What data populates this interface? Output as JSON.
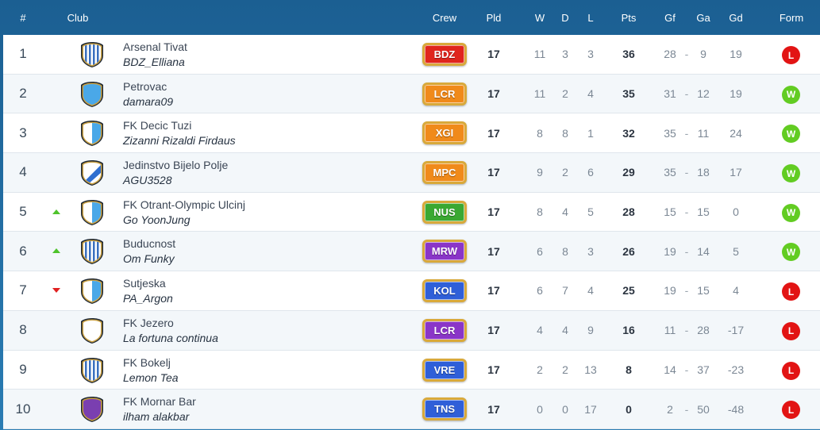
{
  "header": {
    "rank": "#",
    "club": "Club",
    "crew": "Crew",
    "pld": "Pld",
    "w": "W",
    "d": "D",
    "l": "L",
    "pts": "Pts",
    "gf": "Gf",
    "ga": "Ga",
    "gd": "Gd",
    "form": "Form"
  },
  "dash": "-",
  "crest_colors": {
    "stripes": "#3a6fbf",
    "light_blue": "#4aa8e8",
    "white": "#ffffff",
    "purple": "#7a3fb0",
    "gold": "#c9a043"
  },
  "rows": [
    {
      "rank": "1",
      "move": "none",
      "crest": "stripes",
      "club": "Arsenal Tivat",
      "owner": "BDZ_Elliana",
      "crew": "BDZ",
      "crew_color": "#e0251d",
      "pld": "17",
      "w": "11",
      "d": "3",
      "l": "3",
      "pts": "36",
      "gf": "28",
      "ga": "9",
      "gd": "19",
      "form": "L"
    },
    {
      "rank": "2",
      "move": "none",
      "crest": "light_blue",
      "club": "Petrovac",
      "owner": "damara09",
      "crew": "LCR",
      "crew_color": "#f08a1a",
      "pld": "17",
      "w": "11",
      "d": "2",
      "l": "4",
      "pts": "35",
      "gf": "31",
      "ga": "12",
      "gd": "19",
      "form": "W"
    },
    {
      "rank": "3",
      "move": "none",
      "crest": "half_blue",
      "club": "FK Decic Tuzi",
      "owner": "Zizanni Rizaldi Firdaus",
      "crew": "XGI",
      "crew_color": "#f08a1a",
      "pld": "17",
      "w": "8",
      "d": "8",
      "l": "1",
      "pts": "32",
      "gf": "35",
      "ga": "11",
      "gd": "24",
      "form": "W"
    },
    {
      "rank": "4",
      "move": "none",
      "crest": "diagonal",
      "club": "Jedinstvo Bijelo Polje",
      "owner": "AGU3528",
      "crew": "MPC",
      "crew_color": "#f08a1a",
      "pld": "17",
      "w": "9",
      "d": "2",
      "l": "6",
      "pts": "29",
      "gf": "35",
      "ga": "18",
      "gd": "17",
      "form": "W"
    },
    {
      "rank": "5",
      "move": "up",
      "crest": "half_blue",
      "club": "FK Otrant-Olympic Ulcinj",
      "owner": "Go YoonJung",
      "crew": "NUS",
      "crew_color": "#3aa832",
      "pld": "17",
      "w": "8",
      "d": "4",
      "l": "5",
      "pts": "28",
      "gf": "15",
      "ga": "15",
      "gd": "0",
      "form": "W"
    },
    {
      "rank": "6",
      "move": "up",
      "crest": "stripes",
      "club": "Buducnost",
      "owner": "Om Funky",
      "crew": "MRW",
      "crew_color": "#8a35c8",
      "pld": "17",
      "w": "6",
      "d": "8",
      "l": "3",
      "pts": "26",
      "gf": "19",
      "ga": "14",
      "gd": "5",
      "form": "W"
    },
    {
      "rank": "7",
      "move": "down",
      "crest": "half_blue",
      "club": "Sutjeska",
      "owner": "PA_Argon",
      "crew": "KOL",
      "crew_color": "#2f5fd8",
      "pld": "17",
      "w": "6",
      "d": "7",
      "l": "4",
      "pts": "25",
      "gf": "19",
      "ga": "15",
      "gd": "4",
      "form": "L"
    },
    {
      "rank": "8",
      "move": "none",
      "crest": "white",
      "club": "FK Jezero",
      "owner": "La fortuna continua",
      "crew": "LCR",
      "crew_color": "#8a35c8",
      "pld": "17",
      "w": "4",
      "d": "4",
      "l": "9",
      "pts": "16",
      "gf": "11",
      "ga": "28",
      "gd": "-17",
      "form": "L"
    },
    {
      "rank": "9",
      "move": "none",
      "crest": "stripes",
      "club": "FK Bokelj",
      "owner": "Lemon Tea",
      "crew": "VRE",
      "crew_color": "#2f5fd8",
      "pld": "17",
      "w": "2",
      "d": "2",
      "l": "13",
      "pts": "8",
      "gf": "14",
      "ga": "37",
      "gd": "-23",
      "form": "L"
    },
    {
      "rank": "10",
      "move": "none",
      "crest": "purple",
      "club": "FK Mornar Bar",
      "owner": "ilham alakbar",
      "crew": "TNS",
      "crew_color": "#2f5fd8",
      "pld": "17",
      "w": "0",
      "d": "0",
      "l": "17",
      "pts": "0",
      "gf": "2",
      "ga": "50",
      "gd": "-48",
      "form": "L"
    }
  ]
}
